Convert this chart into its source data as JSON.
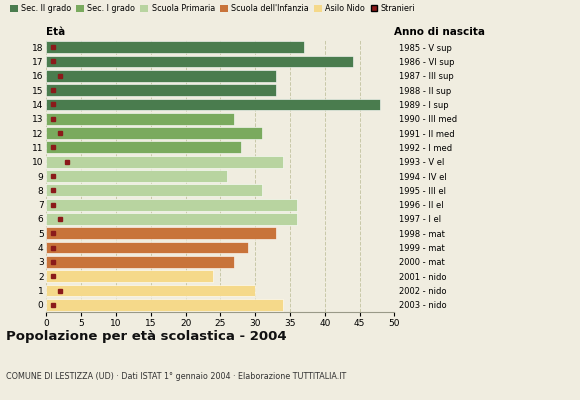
{
  "ages": [
    18,
    17,
    16,
    15,
    14,
    13,
    12,
    11,
    10,
    9,
    8,
    7,
    6,
    5,
    4,
    3,
    2,
    1,
    0
  ],
  "bar_values": [
    37,
    44,
    33,
    33,
    48,
    27,
    31,
    28,
    34,
    26,
    31,
    36,
    36,
    33,
    29,
    27,
    24,
    30,
    34
  ],
  "stranieri_values": [
    1,
    1,
    2,
    1,
    1,
    1,
    2,
    1,
    3,
    1,
    1,
    1,
    2,
    1,
    1,
    1,
    1,
    2,
    1
  ],
  "anno_nascita": [
    "1985 - V sup",
    "1986 - VI sup",
    "1987 - III sup",
    "1988 - II sup",
    "1989 - I sup",
    "1990 - III med",
    "1991 - II med",
    "1992 - I med",
    "1993 - V el",
    "1994 - IV el",
    "1995 - III el",
    "1996 - II el",
    "1997 - I el",
    "1998 - mat",
    "1999 - mat",
    "2000 - mat",
    "2001 - nido",
    "2002 - nido",
    "2003 - nido"
  ],
  "bar_colors": [
    "#4a7c4e",
    "#4a7c4e",
    "#4a7c4e",
    "#4a7c4e",
    "#4a7c4e",
    "#7aaa5e",
    "#7aaa5e",
    "#7aaa5e",
    "#b8d4a0",
    "#b8d4a0",
    "#b8d4a0",
    "#b8d4a0",
    "#b8d4a0",
    "#c8733a",
    "#c8733a",
    "#c8733a",
    "#f5d98a",
    "#f5d98a",
    "#f5d98a"
  ],
  "stranieri_color": "#8b1a1a",
  "legend_labels": [
    "Sec. II grado",
    "Sec. I grado",
    "Scuola Primaria",
    "Scuola dell'Infanzia",
    "Asilo Nido",
    "Stranieri"
  ],
  "legend_colors": [
    "#4a7c4e",
    "#7aaa5e",
    "#b8d4a0",
    "#c8733a",
    "#f5d98a",
    "#8b1a1a"
  ],
  "title": "Popolazione per età scolastica - 2004",
  "subtitle": "COMUNE DI LESTIZZA (UD) · Dati ISTAT 1° gennaio 2004 · Elaborazione TUTTITALIA.IT",
  "xlabel_eta": "Età",
  "xlabel_anno": "Anno di nascita",
  "xlim": [
    0,
    50
  ],
  "xticks": [
    0,
    5,
    10,
    15,
    20,
    25,
    30,
    35,
    40,
    45,
    50
  ],
  "background_color": "#f0ede0",
  "grid_color": "#c8c8a8",
  "bar_height": 0.82
}
